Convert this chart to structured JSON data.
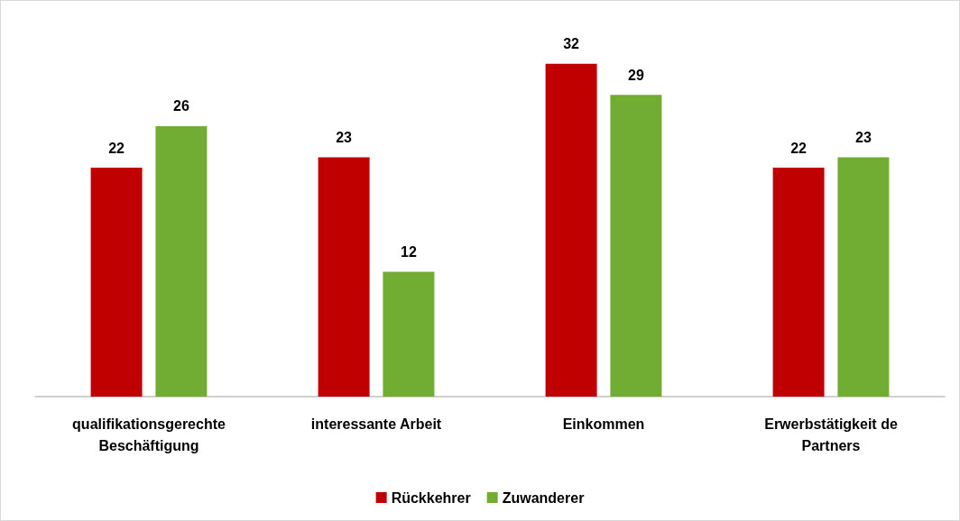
{
  "chart_data": {
    "type": "bar",
    "categories": [
      "qualifikationsgerechte\nBeschäftigung",
      "interessante Arbeit",
      "Einkommen",
      "Erwerbstätigkeit de\nPartners"
    ],
    "series": [
      {
        "name": "Rückkehrer",
        "color": "#c00000",
        "values": [
          22,
          23,
          32,
          22
        ]
      },
      {
        "name": "Zuwanderer",
        "color": "#70ad32",
        "values": [
          26,
          12,
          29,
          23
        ]
      }
    ],
    "data_labels": true,
    "legend": "bottom"
  }
}
